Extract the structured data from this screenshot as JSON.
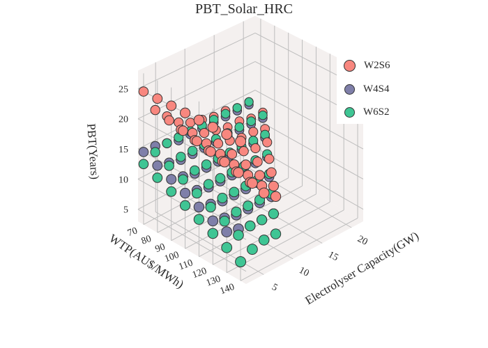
{
  "chart_data": {
    "type": "scatter3d",
    "title": "PBT_Solar_HRC",
    "axes": {
      "x": {
        "label": "Electrolyser Capacity(GW)",
        "ticks": [
          5,
          10,
          15,
          20
        ],
        "range": [
          2,
          22
        ]
      },
      "y": {
        "label": "WTP(AU$/MWh)",
        "ticks": [
          70,
          80,
          90,
          100,
          110,
          120,
          130,
          140
        ],
        "range": [
          66,
          144
        ]
      },
      "z": {
        "label": "PBT(Years)",
        "ticks": [
          5,
          10,
          15,
          20,
          25
        ],
        "range": [
          3,
          28
        ]
      }
    },
    "grid": true,
    "legend_position": "top-right",
    "series": [
      {
        "name": "W2S6",
        "color": "#f8877f",
        "points": [
          [
            2,
            70,
            25
          ],
          [
            2,
            80,
            25
          ],
          [
            2,
            90,
            25
          ],
          [
            2,
            100,
            25
          ],
          [
            2,
            110,
            25
          ],
          [
            2,
            120,
            25
          ],
          [
            2,
            130,
            25
          ],
          [
            2,
            140,
            25
          ],
          [
            4,
            70,
            21
          ],
          [
            4,
            80,
            20.5
          ],
          [
            4,
            90,
            20
          ],
          [
            4,
            100,
            19.5
          ],
          [
            4,
            110,
            19
          ],
          [
            4,
            120,
            18.5
          ],
          [
            4,
            130,
            18
          ],
          [
            4,
            140,
            17.5
          ],
          [
            6,
            70,
            19
          ],
          [
            6,
            80,
            18
          ],
          [
            6,
            90,
            17.5
          ],
          [
            6,
            100,
            17
          ],
          [
            6,
            110,
            16.5
          ],
          [
            6,
            120,
            16
          ],
          [
            6,
            130,
            15.5
          ],
          [
            6,
            140,
            15
          ],
          [
            8,
            70,
            17
          ],
          [
            8,
            80,
            16.5
          ],
          [
            8,
            90,
            16
          ],
          [
            8,
            100,
            15.5
          ],
          [
            8,
            110,
            15
          ],
          [
            8,
            120,
            14.5
          ],
          [
            8,
            130,
            14
          ],
          [
            8,
            140,
            13.5
          ],
          [
            10,
            70,
            16
          ],
          [
            10,
            80,
            15.5
          ],
          [
            10,
            90,
            15
          ],
          [
            10,
            100,
            14.5
          ],
          [
            10,
            110,
            14
          ],
          [
            10,
            120,
            13.5
          ],
          [
            10,
            130,
            13
          ],
          [
            12,
            70,
            15.5
          ],
          [
            12,
            80,
            15
          ],
          [
            12,
            90,
            14.5
          ],
          [
            12,
            100,
            14
          ],
          [
            12,
            110,
            13.5
          ],
          [
            12,
            120,
            13
          ],
          [
            14,
            70,
            15
          ],
          [
            14,
            80,
            14.5
          ],
          [
            14,
            90,
            14
          ],
          [
            14,
            100,
            13.5
          ],
          [
            14,
            110,
            13
          ],
          [
            16,
            70,
            15
          ],
          [
            16,
            80,
            14.5
          ],
          [
            16,
            90,
            14
          ],
          [
            16,
            100,
            13.5
          ],
          [
            18,
            70,
            14.5
          ],
          [
            18,
            80,
            14
          ],
          [
            18,
            90,
            13.5
          ],
          [
            20,
            70,
            14.5
          ],
          [
            20,
            80,
            14
          ]
        ]
      },
      {
        "name": "W4S4",
        "color": "#7f7fa9",
        "points": [
          [
            2,
            70,
            15
          ],
          [
            4,
            70,
            15
          ],
          [
            6,
            70,
            14.5
          ],
          [
            8,
            70,
            14
          ],
          [
            10,
            70,
            14
          ],
          [
            12,
            70,
            14
          ],
          [
            14,
            70,
            14
          ],
          [
            16,
            70,
            14
          ],
          [
            18,
            70,
            14
          ],
          [
            20,
            70,
            14
          ],
          [
            2,
            80,
            14
          ],
          [
            4,
            80,
            13.5
          ],
          [
            6,
            80,
            13
          ],
          [
            8,
            80,
            13
          ],
          [
            10,
            80,
            13
          ],
          [
            12,
            80,
            13
          ],
          [
            14,
            80,
            13
          ],
          [
            16,
            80,
            13
          ],
          [
            18,
            80,
            13
          ],
          [
            20,
            80,
            13
          ],
          [
            2,
            90,
            13
          ],
          [
            4,
            90,
            12.5
          ],
          [
            6,
            90,
            12
          ],
          [
            8,
            90,
            12
          ],
          [
            10,
            90,
            12
          ],
          [
            12,
            90,
            12
          ],
          [
            14,
            90,
            12
          ],
          [
            16,
            90,
            12
          ],
          [
            18,
            90,
            12
          ],
          [
            2,
            100,
            12
          ],
          [
            4,
            100,
            11.5
          ],
          [
            6,
            100,
            11
          ],
          [
            8,
            100,
            11
          ],
          [
            10,
            100,
            11
          ],
          [
            12,
            100,
            11
          ],
          [
            14,
            100,
            11
          ],
          [
            16,
            100,
            11
          ],
          [
            2,
            110,
            11
          ],
          [
            4,
            110,
            10.5
          ],
          [
            6,
            110,
            10
          ],
          [
            8,
            110,
            10
          ],
          [
            10,
            110,
            10
          ],
          [
            12,
            110,
            10
          ],
          [
            14,
            110,
            10
          ],
          [
            2,
            120,
            10
          ],
          [
            4,
            120,
            9.5
          ],
          [
            6,
            120,
            9
          ],
          [
            8,
            120,
            9
          ],
          [
            10,
            120,
            9
          ],
          [
            12,
            120,
            9
          ],
          [
            2,
            130,
            9.5
          ],
          [
            4,
            130,
            9
          ],
          [
            6,
            130,
            8.5
          ],
          [
            8,
            130,
            8.5
          ],
          [
            10,
            130,
            8.5
          ]
        ]
      },
      {
        "name": "W6S2",
        "color": "#3fc594",
        "points": [
          [
            2,
            70,
            13
          ],
          [
            4,
            70,
            14
          ],
          [
            6,
            70,
            14.5
          ],
          [
            8,
            70,
            14.5
          ],
          [
            10,
            70,
            14.5
          ],
          [
            12,
            70,
            14.5
          ],
          [
            14,
            70,
            14.5
          ],
          [
            16,
            70,
            14.5
          ],
          [
            18,
            70,
            14.5
          ],
          [
            20,
            70,
            14.5
          ],
          [
            2,
            80,
            12
          ],
          [
            4,
            80,
            13
          ],
          [
            6,
            80,
            13.5
          ],
          [
            8,
            80,
            13.5
          ],
          [
            10,
            80,
            13.5
          ],
          [
            12,
            80,
            13.5
          ],
          [
            14,
            80,
            13.5
          ],
          [
            16,
            80,
            13.5
          ],
          [
            18,
            80,
            13.5
          ],
          [
            20,
            80,
            13.5
          ],
          [
            2,
            90,
            11
          ],
          [
            4,
            90,
            12
          ],
          [
            6,
            90,
            12.5
          ],
          [
            8,
            90,
            12.5
          ],
          [
            10,
            90,
            12.5
          ],
          [
            12,
            90,
            12.5
          ],
          [
            14,
            90,
            12.5
          ],
          [
            16,
            90,
            12.5
          ],
          [
            18,
            90,
            12.5
          ],
          [
            2,
            100,
            10
          ],
          [
            4,
            100,
            11
          ],
          [
            6,
            100,
            11.5
          ],
          [
            8,
            100,
            11.5
          ],
          [
            10,
            100,
            11.5
          ],
          [
            12,
            100,
            11.5
          ],
          [
            14,
            100,
            11.5
          ],
          [
            16,
            100,
            11.5
          ],
          [
            2,
            110,
            9
          ],
          [
            4,
            110,
            10
          ],
          [
            6,
            110,
            10.5
          ],
          [
            8,
            110,
            10.5
          ],
          [
            10,
            110,
            10.5
          ],
          [
            12,
            110,
            10.5
          ],
          [
            14,
            110,
            10.5
          ],
          [
            2,
            120,
            8
          ],
          [
            4,
            120,
            9
          ],
          [
            6,
            120,
            9.5
          ],
          [
            8,
            120,
            9.5
          ],
          [
            10,
            120,
            9.5
          ],
          [
            12,
            120,
            9.5
          ],
          [
            2,
            130,
            7
          ],
          [
            4,
            130,
            8
          ],
          [
            6,
            130,
            8.5
          ],
          [
            8,
            130,
            8.5
          ],
          [
            10,
            130,
            8.5
          ],
          [
            2,
            140,
            6
          ],
          [
            4,
            140,
            7
          ],
          [
            6,
            140,
            7.5
          ],
          [
            8,
            140,
            7.5
          ]
        ]
      }
    ]
  }
}
